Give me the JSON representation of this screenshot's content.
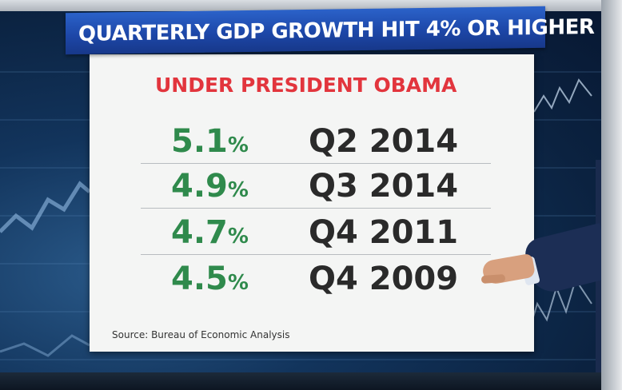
{
  "title": "QUARTERLY GDP GROWTH HIT 4% OR HIGHER",
  "subtitle": "UNDER PRESIDENT OBAMA",
  "rows": [
    {
      "value": "5.1",
      "unit": "%",
      "quarter": "Q2 2014"
    },
    {
      "value": "4.9",
      "unit": "%",
      "quarter": "Q3 2014"
    },
    {
      "value": "4.7",
      "unit": "%",
      "quarter": "Q4 2011"
    },
    {
      "value": "4.5",
      "unit": "%",
      "quarter": "Q4 2009"
    }
  ],
  "source": "Source: Bureau of Economic Analysis",
  "colors": {
    "banner": "#1d47a8",
    "subtitle": "#e2353d",
    "percent": "#2f8a4c",
    "quarter": "#2a2a2a"
  }
}
